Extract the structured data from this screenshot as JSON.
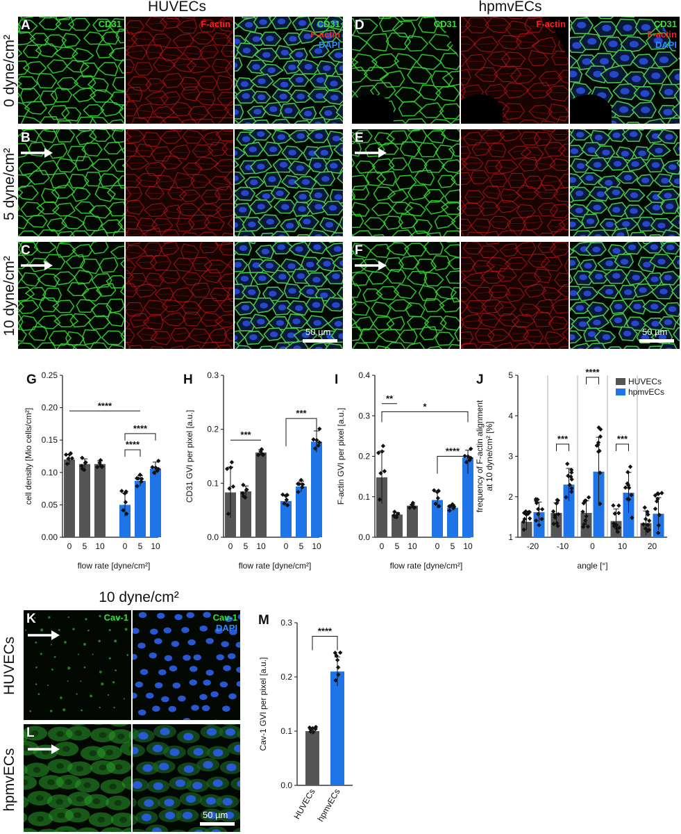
{
  "figure": {
    "top_titles": {
      "huvec": "HUVECs",
      "hpmvec": "hpmvECs"
    },
    "row_labels": [
      "0 dyne/cm²",
      "5 dyne/cm²",
      "10 dyne/cm²"
    ],
    "panel_letters": [
      "A",
      "B",
      "C",
      "D",
      "E",
      "F",
      "G",
      "H",
      "I",
      "J",
      "K",
      "L",
      "M"
    ],
    "channels": {
      "cd31": "CD31",
      "factin": "F-actin",
      "dapi": "DAPI",
      "cav1": "Cav-1"
    },
    "scale_bar": "50 µm",
    "bottom_title": "10 dyne/cm²",
    "bottom_row_labels": [
      "HUVECs",
      "hpmvECs"
    ],
    "colors": {
      "huvec": "#555555",
      "hpmvec": "#1f75e8",
      "cd31": "#38e038",
      "factin": "#ff2020",
      "dapi": "#2a8cff"
    }
  },
  "chart_data": [
    {
      "id": "G",
      "type": "bar",
      "categories": [
        "0",
        "5",
        "10",
        "0",
        "5",
        "10"
      ],
      "values": [
        0.12,
        0.113,
        0.113,
        0.05,
        0.087,
        0.106
      ],
      "errors": [
        0.008,
        0.008,
        0.005,
        0.018,
        0.008,
        0.01
      ],
      "groups": [
        "HUVECs",
        "HUVECs",
        "HUVECs",
        "hpmvECs",
        "hpmvECs",
        "hpmvECs"
      ],
      "xlabel": "flow rate [dyne/cm²]",
      "ylabel": "cell density [Mio cells/cm²]",
      "ylim": [
        0,
        0.25
      ],
      "yticks": [
        "0.00",
        "0.05",
        "0.10",
        "0.15",
        "0.20",
        "0.25"
      ],
      "significance": [
        "****",
        "****",
        "****"
      ]
    },
    {
      "id": "H",
      "type": "bar",
      "categories": [
        "0",
        "5",
        "10",
        "0",
        "5",
        "10"
      ],
      "values": [
        0.083,
        0.085,
        0.157,
        0.067,
        0.094,
        0.177
      ],
      "errors": [
        0.047,
        0.01,
        0.005,
        0.01,
        0.01,
        0.02
      ],
      "groups": [
        "HUVECs",
        "HUVECs",
        "HUVECs",
        "hpmvECs",
        "hpmvECs",
        "hpmvECs"
      ],
      "xlabel": "flow rate [dyne/cm²]",
      "ylabel": "CD31 GVI per pixel [a.u.]",
      "ylim": [
        0,
        0.3
      ],
      "yticks": [
        "0.0",
        "0.1",
        "0.2",
        "0.3"
      ],
      "significance": [
        "***",
        "***"
      ]
    },
    {
      "id": "I",
      "type": "bar",
      "categories": [
        "0",
        "5",
        "10",
        "0",
        "5",
        "10"
      ],
      "values": [
        0.148,
        0.056,
        0.078,
        0.092,
        0.073,
        0.197
      ],
      "errors": [
        0.065,
        0.005,
        0.003,
        0.02,
        0.007,
        0.018
      ],
      "groups": [
        "HUVECs",
        "HUVECs",
        "HUVECs",
        "hpmvECs",
        "hpmvECs",
        "hpmvECs"
      ],
      "xlabel": "flow rate [dyne/cm²]",
      "ylabel": "F-actin GVI per pixel [a.u.]",
      "ylim": [
        0,
        0.4
      ],
      "yticks": [
        "0.0",
        "0.1",
        "0.2",
        "0.3",
        "0.4"
      ],
      "significance": [
        "**",
        "*",
        "****"
      ]
    },
    {
      "id": "J",
      "type": "bar",
      "categories": [
        "-20",
        "-10",
        "0",
        "10",
        "20"
      ],
      "series": [
        {
          "name": "HUVECs",
          "values": [
            1.38,
            1.6,
            1.6,
            1.4,
            1.35
          ],
          "errors": [
            0.2,
            0.25,
            0.3,
            0.3,
            0.3
          ]
        },
        {
          "name": "hpmvECs",
          "values": [
            1.62,
            2.3,
            2.62,
            2.1,
            1.58
          ],
          "errors": [
            0.25,
            0.4,
            0.85,
            0.5,
            0.4
          ]
        }
      ],
      "xlabel": "angle [°]",
      "ylabel": "frequency of F-actin alignment at 10 dyne/cm² [%]",
      "ylim": [
        1,
        5
      ],
      "yticks": [
        "1",
        "2",
        "3",
        "4",
        "5"
      ],
      "legend": "top-right",
      "significance": [
        "***",
        "****",
        "***"
      ]
    },
    {
      "id": "M",
      "type": "bar",
      "categories": [
        "HUVECs",
        "hpmvECs"
      ],
      "values": [
        0.1,
        0.21
      ],
      "errors": [
        0.006,
        0.027
      ],
      "groups": [
        "HUVECs",
        "hpmvECs"
      ],
      "xlabel": "",
      "ylabel": "Cav-1 GVI per pixel [a.u.]",
      "ylim": [
        0,
        0.3
      ],
      "yticks": [
        "0.0",
        "0.1",
        "0.2",
        "0.3"
      ],
      "significance": [
        "****"
      ]
    }
  ]
}
